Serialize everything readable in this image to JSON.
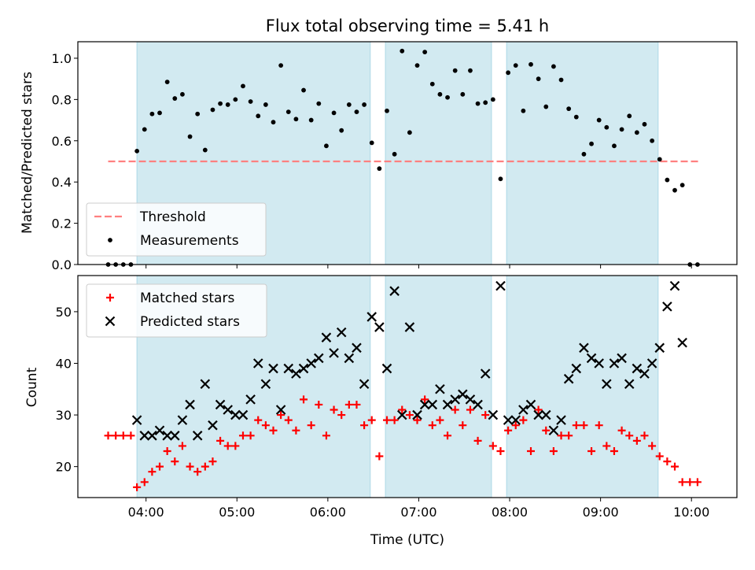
{
  "chart_data": [
    {
      "type": "scatter",
      "title": "Flux total observing time = 5.41 h",
      "xlabel": "",
      "ylabel": "Matched/Predicted stars",
      "xlim": [
        "03:15",
        "10:30"
      ],
      "ylim": [
        0.0,
        1.08
      ],
      "yticks": [
        "0.0",
        "0.2",
        "0.4",
        "0.6",
        "0.8",
        "1.0"
      ],
      "shaded_intervals": [
        [
          "03:54",
          "06:28"
        ],
        [
          "06:38",
          "07:48"
        ],
        [
          "07:58",
          "09:38"
        ]
      ],
      "shade_color": "#add8e6",
      "legend_position": "lower-left",
      "series": [
        {
          "name": "Threshold",
          "style": "dashed-line",
          "color": "#ff8080",
          "x": [
            "03:35",
            "10:05"
          ],
          "y": [
            0.5,
            0.5
          ]
        },
        {
          "name": "Measurements",
          "style": "dot",
          "color": "#000000",
          "x": [
            "03:35",
            "03:40",
            "03:45",
            "03:50",
            "03:54",
            "03:59",
            "04:04",
            "04:09",
            "04:14",
            "04:19",
            "04:24",
            "04:29",
            "04:34",
            "04:39",
            "04:44",
            "04:49",
            "04:54",
            "04:59",
            "05:04",
            "05:09",
            "05:14",
            "05:19",
            "05:24",
            "05:29",
            "05:34",
            "05:39",
            "05:44",
            "05:49",
            "05:54",
            "05:59",
            "06:04",
            "06:09",
            "06:14",
            "06:19",
            "06:24",
            "06:29",
            "06:34",
            "06:39",
            "06:44",
            "06:49",
            "06:54",
            "06:59",
            "07:04",
            "07:09",
            "07:14",
            "07:19",
            "07:24",
            "07:29",
            "07:34",
            "07:39",
            "07:44",
            "07:49",
            "07:54",
            "07:59",
            "08:04",
            "08:09",
            "08:14",
            "08:19",
            "08:24",
            "08:29",
            "08:34",
            "08:39",
            "08:44",
            "08:49",
            "08:54",
            "08:59",
            "09:04",
            "09:09",
            "09:14",
            "09:19",
            "09:24",
            "09:29",
            "09:34",
            "09:39",
            "09:44",
            "09:49",
            "09:54",
            "09:59",
            "10:04"
          ],
          "y": [
            0.0,
            0.0,
            0.0,
            0.0,
            0.55,
            0.655,
            0.73,
            0.735,
            0.885,
            0.805,
            0.825,
            0.62,
            0.73,
            0.555,
            0.75,
            0.78,
            0.775,
            0.8,
            0.865,
            0.79,
            0.72,
            0.775,
            0.69,
            0.965,
            0.74,
            0.705,
            0.845,
            0.7,
            0.78,
            0.575,
            0.735,
            0.65,
            0.775,
            0.74,
            0.775,
            0.59,
            0.465,
            0.745,
            0.535,
            1.035,
            0.64,
            0.965,
            1.03,
            0.875,
            0.825,
            0.81,
            0.94,
            0.825,
            0.94,
            0.78,
            0.785,
            0.8,
            0.415,
            0.93,
            0.965,
            0.745,
            0.97,
            0.9,
            0.765,
            0.96,
            0.895,
            0.755,
            0.715,
            0.535,
            0.585,
            0.7,
            0.665,
            0.575,
            0.655,
            0.72,
            0.64,
            0.68,
            0.6,
            0.51,
            0.41,
            0.36,
            0.385,
            0.0,
            0.0
          ]
        }
      ]
    },
    {
      "type": "scatter",
      "title": "",
      "xlabel": "Time (UTC)",
      "ylabel": "Count",
      "xlim": [
        "03:15",
        "10:30"
      ],
      "ylim": [
        14,
        57
      ],
      "xticks": [
        "04:00",
        "05:00",
        "06:00",
        "07:00",
        "08:00",
        "09:00",
        "10:00"
      ],
      "yticks": [
        "20",
        "30",
        "40",
        "50"
      ],
      "shaded_intervals": [
        [
          "03:54",
          "06:28"
        ],
        [
          "06:38",
          "07:48"
        ],
        [
          "07:58",
          "09:38"
        ]
      ],
      "shade_color": "#add8e6",
      "legend_position": "upper-left",
      "series": [
        {
          "name": "Matched stars",
          "marker": "plus",
          "color": "#ff0000",
          "x": [
            "03:35",
            "03:40",
            "03:45",
            "03:50",
            "03:54",
            "03:59",
            "04:04",
            "04:09",
            "04:14",
            "04:19",
            "04:24",
            "04:29",
            "04:34",
            "04:39",
            "04:44",
            "04:49",
            "04:54",
            "04:59",
            "05:04",
            "05:09",
            "05:14",
            "05:19",
            "05:24",
            "05:29",
            "05:34",
            "05:39",
            "05:44",
            "05:49",
            "05:54",
            "05:59",
            "06:04",
            "06:09",
            "06:14",
            "06:19",
            "06:24",
            "06:29",
            "06:34",
            "06:39",
            "06:44",
            "06:49",
            "06:54",
            "06:59",
            "07:04",
            "07:09",
            "07:14",
            "07:19",
            "07:24",
            "07:29",
            "07:34",
            "07:39",
            "07:44",
            "07:49",
            "07:54",
            "07:59",
            "08:04",
            "08:09",
            "08:14",
            "08:19",
            "08:24",
            "08:29",
            "08:34",
            "08:39",
            "08:44",
            "08:49",
            "08:54",
            "08:59",
            "09:04",
            "09:09",
            "09:14",
            "09:19",
            "09:24",
            "09:29",
            "09:34",
            "09:39",
            "09:44",
            "09:49",
            "09:54",
            "09:59",
            "10:04"
          ],
          "y": [
            26,
            26,
            26,
            26,
            16,
            17,
            19,
            20,
            23,
            21,
            24,
            20,
            19,
            20,
            21,
            25,
            24,
            24,
            26,
            26,
            29,
            28,
            27,
            30,
            29,
            27,
            33,
            28,
            32,
            26,
            31,
            30,
            32,
            32,
            28,
            29,
            22,
            29,
            29,
            31,
            30,
            29,
            33,
            28,
            29,
            26,
            31,
            28,
            31,
            25,
            30,
            24,
            23,
            27,
            28,
            29,
            23,
            31,
            27,
            23,
            26,
            26,
            28,
            28,
            23,
            28,
            24,
            23,
            27,
            26,
            25,
            26,
            24,
            22,
            21,
            20,
            17,
            17,
            17
          ]
        },
        {
          "name": "Predicted stars",
          "marker": "x",
          "color": "#000000",
          "x": [
            "03:54",
            "03:59",
            "04:04",
            "04:09",
            "04:14",
            "04:19",
            "04:24",
            "04:29",
            "04:34",
            "04:39",
            "04:44",
            "04:49",
            "04:54",
            "04:59",
            "05:04",
            "05:09",
            "05:14",
            "05:19",
            "05:24",
            "05:29",
            "05:34",
            "05:39",
            "05:44",
            "05:49",
            "05:54",
            "05:59",
            "06:04",
            "06:09",
            "06:14",
            "06:19",
            "06:24",
            "06:29",
            "06:34",
            "06:39",
            "06:44",
            "06:49",
            "06:54",
            "06:59",
            "07:04",
            "07:09",
            "07:14",
            "07:19",
            "07:24",
            "07:29",
            "07:34",
            "07:39",
            "07:44",
            "07:49",
            "07:54",
            "07:59",
            "08:04",
            "08:09",
            "08:14",
            "08:19",
            "08:24",
            "08:29",
            "08:34",
            "08:39",
            "08:44",
            "08:49",
            "08:54",
            "08:59",
            "09:04",
            "09:09",
            "09:14",
            "09:19",
            "09:24",
            "09:29",
            "09:34",
            "09:39",
            "09:44",
            "09:49",
            "09:54"
          ],
          "y": [
            29,
            26,
            26,
            27,
            26,
            26,
            29,
            32,
            26,
            36,
            28,
            32,
            31,
            30,
            30,
            33,
            40,
            36,
            39,
            31,
            39,
            38,
            39,
            40,
            41,
            45,
            42,
            46,
            41,
            43,
            36,
            49,
            47,
            39,
            54,
            30,
            47,
            30,
            32,
            32,
            35,
            32,
            33,
            34,
            33,
            32,
            38,
            30,
            55,
            29,
            29,
            31,
            32,
            30,
            30,
            27,
            29,
            37,
            39,
            43,
            41,
            40,
            36,
            40,
            41,
            36,
            39,
            38,
            40,
            43,
            51,
            55,
            44
          ]
        }
      ]
    }
  ]
}
